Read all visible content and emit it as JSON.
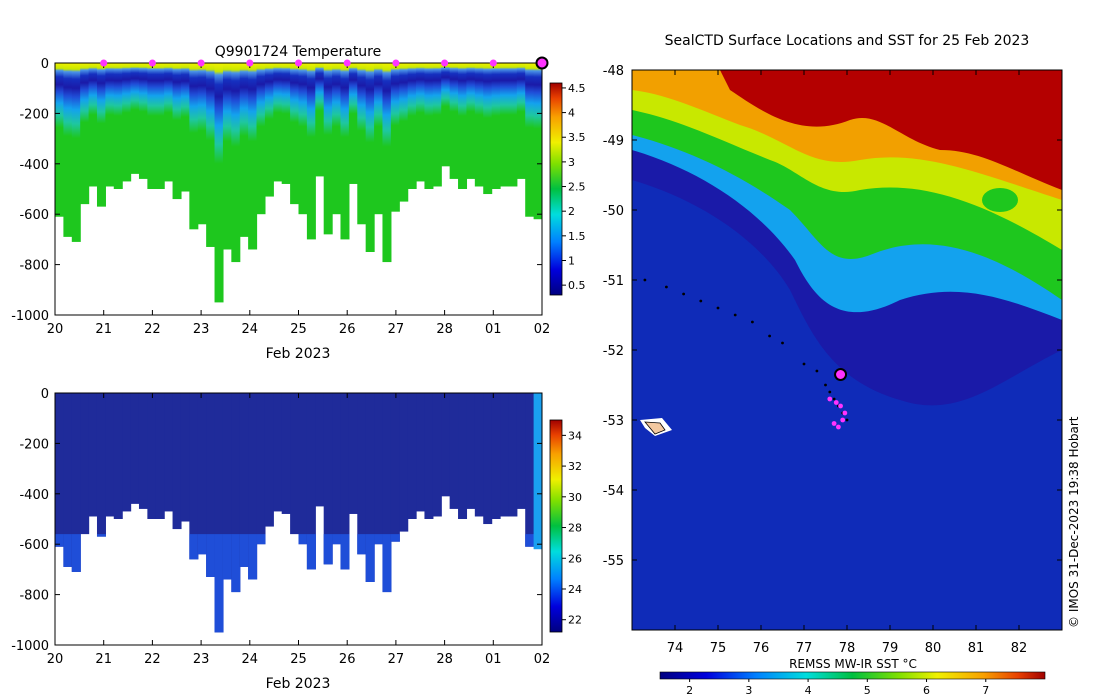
{
  "figure": {
    "map_title": "SealCTD Surface Locations and SST for 25 Feb 2023",
    "credit": "© IMOS 31-Dec-2023 19:38 Hobart",
    "sst_label": "REMSS MW-IR SST °C"
  },
  "colors": {
    "white": "#ffffff",
    "deep_blue": "#1a1aa8",
    "navy": "#1f2b9a",
    "ice_blue": "#13a2ee",
    "blue_mid": "#1f4ed8",
    "ice_light": "#1aa0f0",
    "cyan_top": "#4a94e8",
    "yellow": "#f2f200",
    "green": "#1ec71e",
    "red": "#b40000",
    "magenta": "#ff33ff",
    "black": "#000000",
    "land": "#f2c8a0"
  },
  "chart_data": [
    {
      "type": "heatmap",
      "title": "Q9901724  Temperature",
      "xlabel": "Feb 2023",
      "ylabel": "",
      "xticks": [
        "20",
        "21",
        "22",
        "23",
        "24",
        "25",
        "26",
        "27",
        "28",
        "01",
        "02"
      ],
      "xlim": [
        20,
        30
      ],
      "ylim": [
        -1000,
        0
      ],
      "yticks": [
        0,
        -200,
        -400,
        -600,
        -800,
        -1000
      ],
      "colorbar": {
        "min": 0.3,
        "max": 4.6,
        "ticks": [
          0.5,
          1,
          1.5,
          2,
          2.5,
          3,
          3.5,
          4,
          4.5
        ]
      },
      "profile_max_depth_m": [
        610,
        690,
        710,
        560,
        490,
        570,
        490,
        500,
        470,
        440,
        460,
        500,
        500,
        470,
        540,
        510,
        660,
        640,
        730,
        950,
        740,
        790,
        690,
        740,
        600,
        530,
        470,
        480,
        560,
        600,
        700,
        450,
        680,
        600,
        700,
        480,
        640,
        750,
        600,
        790,
        590,
        550,
        500,
        470,
        500,
        490,
        410,
        460,
        500,
        460,
        490,
        520,
        500,
        490,
        490,
        460,
        610,
        620
      ],
      "surface_markers_day": [
        21,
        22,
        23,
        24,
        25,
        26,
        27,
        28,
        29
      ],
      "latest_marker_day": 30
    },
    {
      "type": "heatmap",
      "title": "",
      "xlabel": "Feb 2023",
      "ylabel": "",
      "xticks": [
        "20",
        "21",
        "22",
        "23",
        "24",
        "25",
        "26",
        "27",
        "28",
        "01",
        "02"
      ],
      "xlim": [
        20,
        30
      ],
      "ylim": [
        -1000,
        0
      ],
      "yticks": [
        0,
        -200,
        -400,
        -600,
        -800,
        -1000
      ],
      "colorbar": {
        "min": 21.2,
        "max": 35,
        "ticks": [
          22,
          24,
          26,
          28,
          30,
          32,
          34
        ]
      },
      "profile_max_depth_m": [
        610,
        690,
        710,
        560,
        490,
        570,
        490,
        500,
        470,
        440,
        460,
        500,
        500,
        470,
        540,
        510,
        660,
        640,
        730,
        950,
        740,
        790,
        690,
        740,
        600,
        530,
        470,
        480,
        560,
        600,
        700,
        450,
        680,
        600,
        700,
        480,
        640,
        750,
        600,
        790,
        590,
        550,
        500,
        470,
        500,
        490,
        410,
        460,
        500,
        460,
        490,
        520,
        500,
        490,
        490,
        460,
        610,
        620
      ]
    },
    {
      "type": "heatmap",
      "title": "SealCTD Surface Locations and SST for 25 Feb 2023",
      "xlabel": "",
      "ylabel": "",
      "xticks": [
        "74",
        "75",
        "76",
        "77",
        "78",
        "79",
        "80",
        "81",
        "82"
      ],
      "yticks": [
        "-48",
        "-49",
        "-50",
        "-51",
        "-52",
        "-53",
        "-54",
        "-55"
      ],
      "xlim": [
        73.0,
        83.0
      ],
      "ylim": [
        -56.0,
        -48.0
      ],
      "colorbar": {
        "min": 1.5,
        "max": 8.0,
        "ticks": [
          2,
          3,
          4,
          5,
          6,
          7
        ],
        "label": "REMSS MW-IR SST °C"
      },
      "track_lon": [
        73.3,
        73.8,
        74.2,
        74.6,
        75.0,
        75.4,
        75.8,
        76.2,
        76.5,
        77.0,
        77.3,
        77.5,
        77.6,
        77.7,
        77.8,
        77.9,
        78.0
      ],
      "track_lat": [
        -51.0,
        -51.1,
        -51.2,
        -51.3,
        -51.4,
        -51.5,
        -51.6,
        -51.8,
        -51.9,
        -52.2,
        -52.3,
        -52.5,
        -52.6,
        -52.7,
        -52.8,
        -52.9,
        -53.0
      ],
      "profile_lon": [
        77.6,
        77.75,
        77.85,
        77.95,
        77.7,
        77.8,
        77.9
      ],
      "profile_lat": [
        -52.7,
        -52.75,
        -52.8,
        -52.9,
        -53.05,
        -53.1,
        -53.0
      ],
      "latest_lon": 77.85,
      "latest_lat": -52.35
    }
  ]
}
